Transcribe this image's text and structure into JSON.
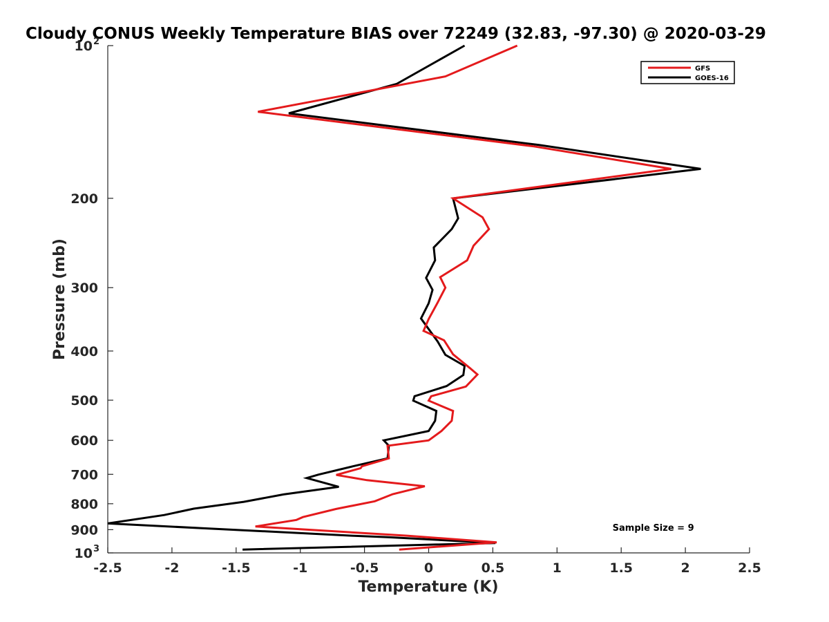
{
  "chart_data": {
    "type": "line",
    "title": "Cloudy CONUS Weekly Temperature BIAS over 72249 (32.83, -97.30) @ 2020-03-29",
    "xlabel": "Temperature (K)",
    "ylabel": "Pressure (mb)",
    "xlim": [
      -2.5,
      2.5
    ],
    "ylim": [
      100,
      1000
    ],
    "yscale": "log",
    "yreversed": true,
    "grid": false,
    "legend_position": "top-right",
    "x_ticks": [
      {
        "value": -2.5,
        "label": "-2.5"
      },
      {
        "value": -2,
        "label": "-2"
      },
      {
        "value": -1.5,
        "label": "-1.5"
      },
      {
        "value": -1,
        "label": "-1"
      },
      {
        "value": -0.5,
        "label": "-0.5"
      },
      {
        "value": 0,
        "label": "0"
      },
      {
        "value": 0.5,
        "label": "0.5"
      },
      {
        "value": 1,
        "label": "1"
      },
      {
        "value": 1.5,
        "label": "1.5"
      },
      {
        "value": 2,
        "label": "2"
      },
      {
        "value": 2.5,
        "label": "2.5"
      }
    ],
    "y_ticks": [
      {
        "value": 100,
        "base": "10",
        "exp": "2"
      },
      {
        "value": 200,
        "label": "200"
      },
      {
        "value": 300,
        "label": "300"
      },
      {
        "value": 400,
        "label": "400"
      },
      {
        "value": 500,
        "label": "500"
      },
      {
        "value": 600,
        "label": "600"
      },
      {
        "value": 700,
        "label": "700"
      },
      {
        "value": 800,
        "label": "800"
      },
      {
        "value": 900,
        "label": "900"
      },
      {
        "value": 1000,
        "base": "10",
        "exp": "3"
      }
    ],
    "series": [
      {
        "name": "GFS",
        "color": "#e41a1c",
        "points": [
          [
            0.69,
            100
          ],
          [
            0.13,
            115
          ],
          [
            -1.33,
            135
          ],
          [
            0.82,
            158
          ],
          [
            1.89,
            175
          ],
          [
            0.19,
            200
          ],
          [
            0.42,
            218
          ],
          [
            0.47,
            230
          ],
          [
            0.35,
            248
          ],
          [
            0.3,
            265
          ],
          [
            0.09,
            286
          ],
          [
            0.13,
            300
          ],
          [
            0.07,
            321
          ],
          [
            0.0,
            346
          ],
          [
            -0.04,
            365
          ],
          [
            0.12,
            381
          ],
          [
            0.19,
            406
          ],
          [
            0.32,
            432
          ],
          [
            0.38,
            445
          ],
          [
            0.29,
            470
          ],
          [
            0.02,
            491
          ],
          [
            0.0,
            501
          ],
          [
            0.19,
            525
          ],
          [
            0.18,
            549
          ],
          [
            0.1,
            575
          ],
          [
            0.0,
            600
          ],
          [
            -0.32,
            615
          ],
          [
            -0.31,
            651
          ],
          [
            -0.52,
            675
          ],
          [
            -0.53,
            681
          ],
          [
            -0.72,
            702
          ],
          [
            -0.48,
            719
          ],
          [
            -0.03,
            739
          ],
          [
            -0.28,
            766
          ],
          [
            -0.42,
            791
          ],
          [
            -0.72,
            819
          ],
          [
            -0.98,
            850
          ],
          [
            -1.03,
            861
          ],
          [
            -1.35,
            887
          ],
          [
            -0.17,
            925
          ],
          [
            0.53,
            953
          ],
          [
            -0.23,
            985
          ]
        ]
      },
      {
        "name": "GOES-16",
        "color": "#000000",
        "points": [
          [
            0.28,
            100
          ],
          [
            -0.25,
            119
          ],
          [
            -1.09,
            136
          ],
          [
            0.86,
            157
          ],
          [
            2.12,
            175
          ],
          [
            0.19,
            200
          ],
          [
            0.23,
            219
          ],
          [
            0.18,
            230
          ],
          [
            0.04,
            250
          ],
          [
            0.05,
            265
          ],
          [
            -0.02,
            287
          ],
          [
            0.03,
            303
          ],
          [
            0.0,
            322
          ],
          [
            -0.06,
            345
          ],
          [
            0.07,
            383
          ],
          [
            0.13,
            407
          ],
          [
            0.28,
            428
          ],
          [
            0.27,
            446
          ],
          [
            0.14,
            469
          ],
          [
            -0.11,
            491
          ],
          [
            -0.12,
            501
          ],
          [
            0.06,
            525
          ],
          [
            0.05,
            549
          ],
          [
            0.0,
            575
          ],
          [
            -0.35,
            600
          ],
          [
            -0.31,
            615
          ],
          [
            -0.32,
            651
          ],
          [
            -0.59,
            675
          ],
          [
            -0.86,
            701
          ],
          [
            -0.95,
            712
          ],
          [
            -0.7,
            741
          ],
          [
            -1.13,
            767
          ],
          [
            -1.44,
            793
          ],
          [
            -1.83,
            818
          ],
          [
            -2.06,
            842
          ],
          [
            -2.5,
            875
          ],
          [
            -0.6,
            925
          ],
          [
            -0.32,
            931
          ],
          [
            0.52,
            956
          ],
          [
            -1.45,
            985
          ]
        ]
      }
    ],
    "annotations": [
      {
        "text": "Sample Size = 9",
        "x": 1.75,
        "y": 905
      }
    ]
  }
}
